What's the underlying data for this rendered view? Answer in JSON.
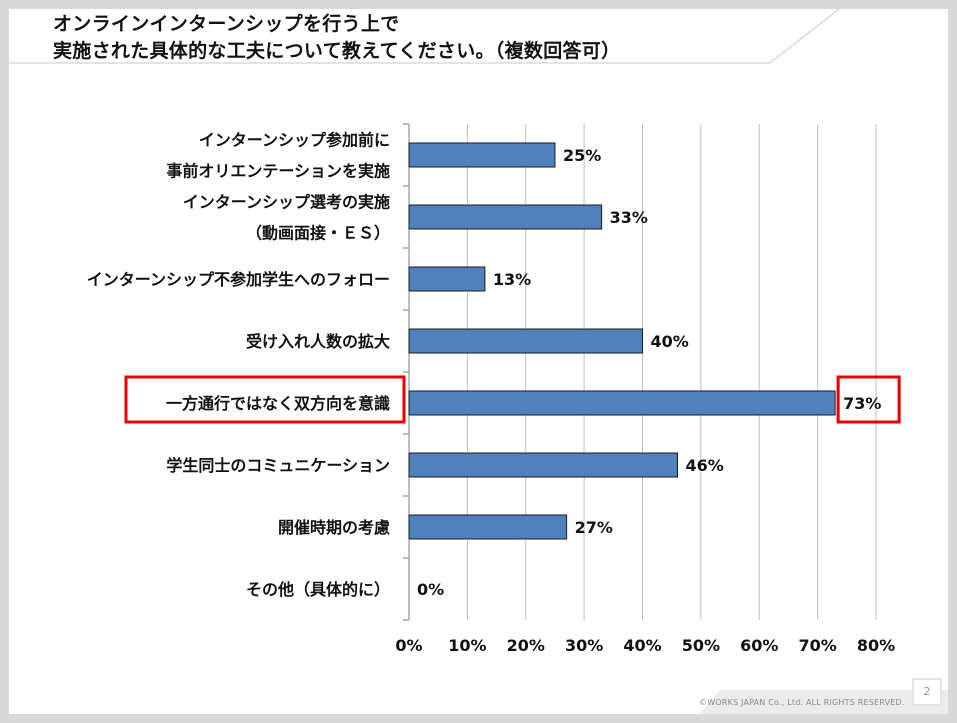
{
  "title": {
    "line1": "オンラインインターンシップを行う上で",
    "line2": "実施された具体的な工夫について教えてください。（複数回答可）"
  },
  "footer": "©WORKS JAPAN Co., Ltd. ALL RIGHTS RESERVED.",
  "page_number": "2",
  "colors": {
    "bar_fill": "#4f81bd",
    "bar_stroke": "#1a1a1a",
    "highlight": "#e60000",
    "grid": "#bfbfbf"
  },
  "chart_data": {
    "type": "bar",
    "orientation": "horizontal",
    "categories": [
      [
        "インターンシップ参加前に",
        "事前オリエンテーションを実施"
      ],
      [
        "インターンシップ選考の実施",
        "（動画面接・ＥＳ）"
      ],
      [
        "インターンシップ不参加学生へのフォロー"
      ],
      [
        "受け入れ人数の拡大"
      ],
      [
        "一方通行ではなく双方向を意識"
      ],
      [
        "学生同士のコミュニケーション"
      ],
      [
        "開催時期の考慮"
      ],
      [
        "その他（具体的に）"
      ]
    ],
    "values": [
      25,
      33,
      13,
      40,
      73,
      46,
      27,
      0
    ],
    "value_labels": [
      "25%",
      "33%",
      "13%",
      "40%",
      "73%",
      "46%",
      "27%",
      "0%"
    ],
    "highlighted_index": 4,
    "xlim": [
      0,
      80
    ],
    "xticks": [
      "0%",
      "10%",
      "20%",
      "30%",
      "40%",
      "50%",
      "60%",
      "70%",
      "80%"
    ],
    "grid": "vertical",
    "legend": "none"
  }
}
